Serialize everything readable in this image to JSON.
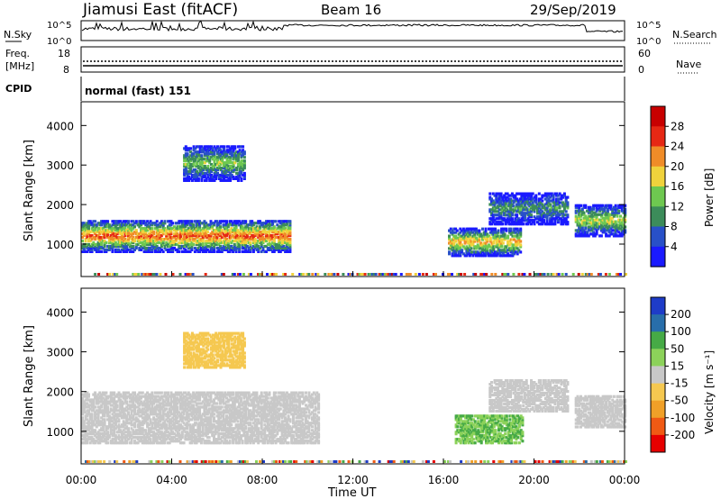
{
  "header": {
    "station": "Jiamusi East (fitACF)",
    "beam": "Beam 16",
    "date": "29/Sep/2019"
  },
  "noise_panel": {
    "left_label": "N.Sky",
    "right_label": "N.Search",
    "left_ticks": [
      "10^5",
      "10^0"
    ],
    "right_ticks": [
      "10^5",
      "10^0"
    ]
  },
  "freq_panel": {
    "left_label_1": "Freq.",
    "left_label_2": "[MHz]",
    "right_label": "Nave",
    "left_ticks": [
      "18",
      "8"
    ],
    "right_ticks": [
      "60",
      "0"
    ]
  },
  "cpid": {
    "label": "CPID",
    "value": "normal (fast) 151"
  },
  "chart_data": [
    {
      "type": "heatmap",
      "name": "power",
      "ylabel": "Slant Range [km]",
      "ylim": [
        180,
        4600
      ],
      "yticks": [
        "1000",
        "2000",
        "3000",
        "4000"
      ],
      "colorbar_label": "Power [dB]",
      "colorbar_ticks": [
        "4",
        "8",
        "12",
        "16",
        "20",
        "24",
        "28"
      ],
      "colorbar_range": [
        0,
        32
      ],
      "colors": [
        "#1a1aff",
        "#2850c8",
        "#3c8c5a",
        "#6ec850",
        "#f0d23c",
        "#f08c28",
        "#e62814",
        "#c80000"
      ],
      "echo_regions": [
        {
          "t": [
            0.0,
            9.2
          ],
          "range": [
            800,
            1600
          ],
          "peak_db": 28
        },
        {
          "t": [
            4.5,
            7.2
          ],
          "range": [
            2600,
            3500
          ],
          "peak_db": 18
        },
        {
          "t": [
            16.2,
            19.4
          ],
          "range": [
            700,
            1400
          ],
          "peak_db": 24
        },
        {
          "t": [
            18.0,
            21.5
          ],
          "range": [
            1500,
            2300
          ],
          "peak_db": 14
        },
        {
          "t": [
            21.8,
            24.0
          ],
          "range": [
            1200,
            2000
          ],
          "peak_db": 20
        }
      ]
    },
    {
      "type": "heatmap",
      "name": "velocity",
      "ylabel": "Slant Range [km]",
      "xlabel": "Time UT",
      "ylim": [
        180,
        4600
      ],
      "yticks": [
        "1000",
        "2000",
        "3000",
        "4000"
      ],
      "xticks": [
        "00:00",
        "04:00",
        "08:00",
        "12:00",
        "16:00",
        "20:00",
        "00:00"
      ],
      "colorbar_label": "Velocity [m s⁻¹]",
      "colorbar_ticks": [
        "200",
        "100",
        "50",
        "15",
        "-15",
        "-50",
        "-100",
        "-200"
      ],
      "colorbar_range": [
        -250,
        250
      ],
      "colors": [
        "#e60000",
        "#f05a14",
        "#f0a028",
        "#f5c850",
        "#c8c8c8",
        "#8cd25a",
        "#46aa46",
        "#286eaa",
        "#1e3cc8"
      ],
      "echo_regions": [
        {
          "t": [
            0.0,
            10.5
          ],
          "range": [
            700,
            2000
          ],
          "velocity": 0
        },
        {
          "t": [
            4.5,
            7.2
          ],
          "range": [
            2600,
            3500
          ],
          "velocity": -60
        },
        {
          "t": [
            16.5,
            19.5
          ],
          "range": [
            700,
            1400
          ],
          "velocity": 80
        },
        {
          "t": [
            18.0,
            21.5
          ],
          "range": [
            1500,
            2300
          ],
          "velocity": 0
        },
        {
          "t": [
            21.8,
            24.0
          ],
          "range": [
            1100,
            1900
          ],
          "velocity": 0
        }
      ]
    }
  ]
}
